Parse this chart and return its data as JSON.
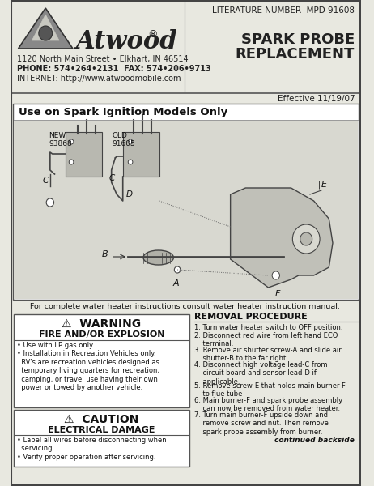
{
  "bg_color": "#e8e8e0",
  "border_color": "#555555",
  "title_lit_num": "LITERATURE NUMBER  MPD 91608",
  "company_name": "Atwood",
  "address1": "1120 North Main Street • Elkhart, IN 46514",
  "address2": "PHONE: 574•264•2131  FAX: 574•206•9713",
  "address3": "INTERNET: http://www.atwoodmobile.com",
  "doc_title1": "SPARK PROBE",
  "doc_title2": "REPLACEMENT",
  "effective": "Effective 11/19/07",
  "diagram_title": "Use on Spark Ignition Models Only",
  "footer_note": "For complete water heater instructions consult water heater instruction manual.",
  "removal_title": "REMOVAL PROCEDURE",
  "removal_steps": [
    "1. Turn water heater switch to OFF position.",
    "2. Disconnect red wire from left hand ECO\n    terminal.",
    "3. Remove air shutter screw-A and slide air\n    shutter-B to the far right.",
    "4. Disconnect high voltage lead-C from\n    circuit board and sensor lead-D if\n    applicable.",
    "5. Remove screw-E that holds main burner-F\n    to flue tube",
    "6. Main burner-F and spark probe assembly\n    can now be removed from water heater.",
    "7. Turn main burner-F upside down and\n    remove screw and nut. Then remove\n    spark probe assembly from burner."
  ],
  "removal_footer": "continued backside",
  "warning_title": "WARNING",
  "warning_sub": "FIRE AND/OR EXPLOSION",
  "warning_bullets": [
    "• Use with LP gas only.",
    "• Installation in Recreation Vehicles only.\n  RV's are recreation vehicles designed as\n  temporary living quarters for recreation,\n  camping, or travel use having their own\n  power or towed by another vehicle."
  ],
  "caution_title": "CAUTION",
  "caution_sub": "ELECTRICAL DAMAGE",
  "caution_bullets": [
    "• Label all wires before disconnecting when\n  servicing.",
    "• Verify proper operation after servicing."
  ]
}
